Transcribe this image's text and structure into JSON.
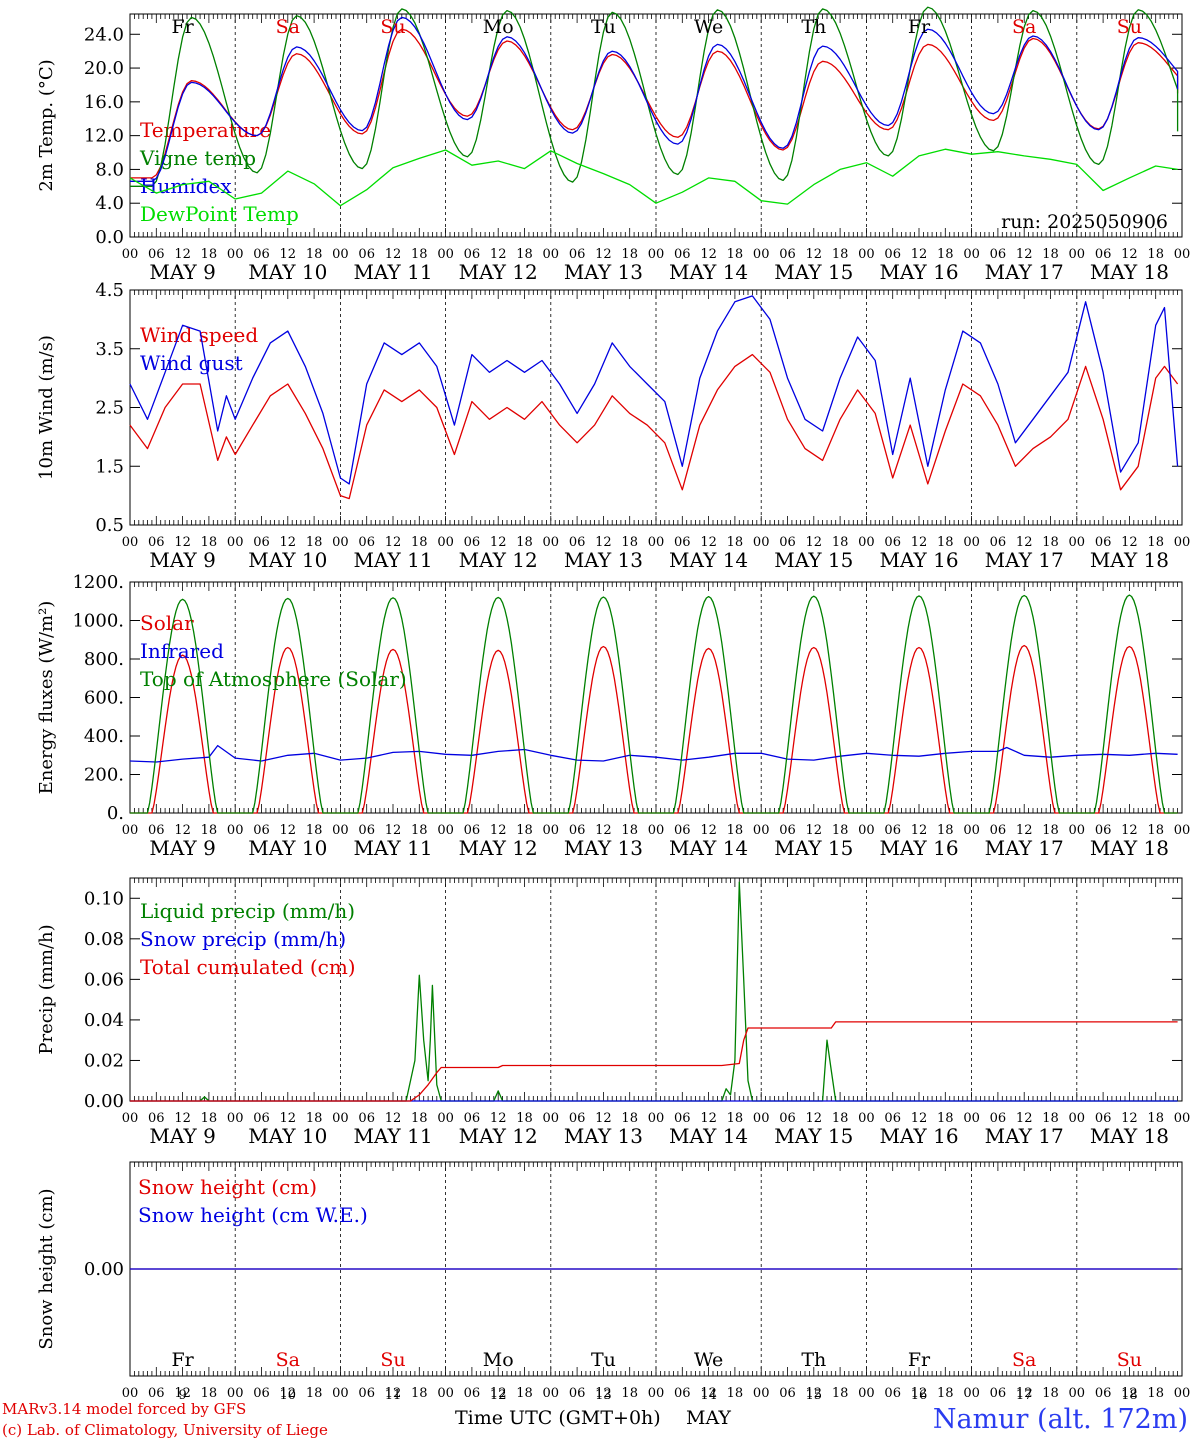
{
  "days": [
    "Fr",
    "Sa",
    "Su",
    "Mo",
    "Tu",
    "We",
    "Th",
    "Fr",
    "Sa",
    "Su"
  ],
  "day_colors": [
    "#000000",
    "#e00000",
    "#e00000",
    "#000000",
    "#000000",
    "#000000",
    "#000000",
    "#000000",
    "#e00000",
    "#e00000"
  ],
  "date_labels": [
    "MAY  9",
    "MAY 10",
    "MAY 11",
    "MAY 12",
    "MAY 13",
    "MAY 14",
    "MAY 15",
    "MAY 16",
    "MAY 17",
    "MAY 18"
  ],
  "day_numbers": [
    "9",
    "10",
    "11",
    "12",
    "13",
    "14",
    "15",
    "16",
    "17",
    "18"
  ],
  "hour_ticks": [
    "00",
    "06",
    "12",
    "18"
  ],
  "run_label": "run: 2025050906",
  "footer": {
    "model": "MARv3.14 model forced by GFS",
    "lab": "(c) Lab. of Climatology, University of Liege",
    "axis_title": "Time UTC (GMT+0h)",
    "month": "MAY",
    "station": "Namur (alt. 172m)"
  },
  "colors": {
    "red": "#e00000",
    "blue": "#0000e0",
    "green": "#008000",
    "lightgreen": "#00dd00",
    "station": "#2a3cf0"
  },
  "chart_data": [
    {
      "type": "line",
      "id": "temperature",
      "ylabel": "2m Temp. (°C)",
      "ylim": [
        0,
        26.4
      ],
      "yticks": [
        "0.0",
        "4.0",
        "8.0",
        "12.0",
        "16.0",
        "20.0",
        "24.0"
      ],
      "ytick_values": [
        0,
        4,
        8,
        12,
        16,
        20,
        24
      ],
      "x_unit": "hours since MAY 9 00 UTC",
      "series": [
        {
          "name": "Temperature",
          "color": "red",
          "kind": "diurnal",
          "max": [
            18.5,
            21.7,
            24.6,
            23.2,
            21.6,
            22.0,
            20.8,
            22.8,
            23.5,
            23.0
          ],
          "min": [
            7.0,
            12.0,
            12.2,
            14.3,
            12.7,
            11.8,
            10.3,
            12.7,
            13.8,
            12.8
          ],
          "end": 17.0
        },
        {
          "name": "Vigne temp",
          "color": "green",
          "kind": "diurnal",
          "max": [
            26.0,
            26.2,
            27.0,
            26.8,
            26.6,
            26.9,
            27.0,
            27.2,
            26.8,
            26.9
          ],
          "min": [
            6.0,
            7.6,
            8.1,
            9.5,
            6.5,
            7.4,
            6.7,
            9.6,
            10.2,
            8.6
          ],
          "end": 12.5
        },
        {
          "name": "Humidex",
          "color": "blue",
          "kind": "diurnal",
          "max": [
            18.3,
            22.5,
            26.0,
            23.7,
            22.0,
            22.8,
            22.6,
            24.6,
            23.8,
            23.6
          ],
          "min": [
            6.6,
            12.0,
            12.6,
            13.9,
            12.3,
            11.0,
            10.5,
            13.2,
            14.6,
            12.7
          ],
          "end": 17.5
        },
        {
          "name": "DewPoint Temp",
          "color": "lightgreen",
          "kind": "points",
          "x": [
            0,
            6,
            12,
            18,
            24,
            30,
            36,
            42,
            48,
            54,
            60,
            66,
            72,
            78,
            84,
            90,
            96,
            102,
            108,
            114,
            120,
            126,
            132,
            138,
            144,
            150,
            156,
            162,
            168,
            174,
            180,
            186,
            192,
            198,
            204,
            210,
            216,
            222,
            228,
            234,
            239
          ],
          "y": [
            7.0,
            5.2,
            6.2,
            6.6,
            4.5,
            5.2,
            7.8,
            6.3,
            3.7,
            5.6,
            8.2,
            9.3,
            10.3,
            8.5,
            9.0,
            8.1,
            10.2,
            8.7,
            7.5,
            6.2,
            4.0,
            5.3,
            7.0,
            6.6,
            4.3,
            3.9,
            6.2,
            8.0,
            8.8,
            7.2,
            9.6,
            10.4,
            9.8,
            10.1,
            9.6,
            9.2,
            8.6,
            5.5,
            7.0,
            8.4,
            8.0
          ]
        }
      ]
    },
    {
      "type": "line",
      "id": "wind",
      "ylabel": "10m Wind (m/s)",
      "ylim": [
        0.5,
        4.5
      ],
      "yticks": [
        "0.5",
        "1.5",
        "2.5",
        "3.5",
        "4.5"
      ],
      "ytick_values": [
        0.5,
        1.5,
        2.5,
        3.5,
        4.5
      ],
      "series": [
        {
          "name": "Wind speed",
          "color": "red",
          "x": [
            0,
            4,
            8,
            12,
            16,
            20,
            22,
            24,
            28,
            32,
            36,
            40,
            44,
            48,
            50,
            54,
            58,
            62,
            66,
            70,
            74,
            78,
            82,
            86,
            90,
            94,
            98,
            102,
            106,
            110,
            114,
            118,
            122,
            126,
            130,
            134,
            138,
            142,
            146,
            150,
            154,
            158,
            162,
            166,
            170,
            174,
            178,
            182,
            186,
            190,
            194,
            198,
            202,
            206,
            210,
            214,
            218,
            222,
            226,
            230,
            234,
            236,
            239
          ],
          "y": [
            2.2,
            1.8,
            2.5,
            2.9,
            2.9,
            1.6,
            2.0,
            1.7,
            2.2,
            2.7,
            2.9,
            2.4,
            1.8,
            1.0,
            0.95,
            2.2,
            2.8,
            2.6,
            2.8,
            2.5,
            1.7,
            2.6,
            2.3,
            2.5,
            2.3,
            2.6,
            2.2,
            1.9,
            2.2,
            2.7,
            2.4,
            2.2,
            1.9,
            1.1,
            2.2,
            2.8,
            3.2,
            3.4,
            3.1,
            2.3,
            1.8,
            1.6,
            2.3,
            2.8,
            2.4,
            1.3,
            2.2,
            1.2,
            2.1,
            2.9,
            2.7,
            2.2,
            1.5,
            1.8,
            2.0,
            2.3,
            3.2,
            2.3,
            1.1,
            1.5,
            3.0,
            3.2,
            2.9
          ]
        },
        {
          "name": "Wind gust",
          "color": "blue",
          "x": [
            0,
            4,
            8,
            12,
            16,
            20,
            22,
            24,
            28,
            32,
            36,
            40,
            44,
            48,
            50,
            54,
            58,
            62,
            66,
            70,
            74,
            78,
            82,
            86,
            90,
            94,
            98,
            102,
            106,
            110,
            114,
            118,
            122,
            126,
            130,
            134,
            138,
            142,
            146,
            150,
            154,
            158,
            162,
            166,
            170,
            174,
            178,
            182,
            186,
            190,
            194,
            198,
            202,
            206,
            210,
            214,
            218,
            222,
            226,
            230,
            234,
            236,
            239
          ],
          "y": [
            2.9,
            2.3,
            3.1,
            3.9,
            3.8,
            2.1,
            2.7,
            2.3,
            3.0,
            3.6,
            3.8,
            3.2,
            2.4,
            1.3,
            1.2,
            2.9,
            3.6,
            3.4,
            3.6,
            3.2,
            2.2,
            3.4,
            3.1,
            3.3,
            3.1,
            3.3,
            2.9,
            2.4,
            2.9,
            3.6,
            3.2,
            2.9,
            2.6,
            1.5,
            3.0,
            3.8,
            4.3,
            4.4,
            4.0,
            3.0,
            2.3,
            2.1,
            3.0,
            3.7,
            3.3,
            1.7,
            3.0,
            1.5,
            2.8,
            3.8,
            3.6,
            2.9,
            1.9,
            2.3,
            2.7,
            3.1,
            4.3,
            3.1,
            1.4,
            1.9,
            3.9,
            4.2,
            1.5
          ]
        }
      ]
    },
    {
      "type": "line",
      "id": "energy",
      "ylabel": "Energy fluxes (W/m²)",
      "ylim": [
        0,
        1200
      ],
      "yticks": [
        "0.",
        "200.",
        "400.",
        "600.",
        "800.",
        "1000.",
        "1200."
      ],
      "ytick_values": [
        0,
        200,
        400,
        600,
        800,
        1000,
        1200
      ],
      "series": [
        {
          "name": "Solar",
          "color": "red",
          "kind": "bell",
          "peak": [
            820,
            860,
            850,
            845,
            865,
            855,
            860,
            860,
            870,
            865
          ]
        },
        {
          "name": "Infrared",
          "color": "blue",
          "kind": "points",
          "x": [
            0,
            6,
            12,
            18,
            20,
            24,
            30,
            36,
            42,
            48,
            54,
            60,
            66,
            72,
            78,
            84,
            90,
            96,
            102,
            108,
            114,
            120,
            126,
            132,
            138,
            144,
            150,
            156,
            162,
            168,
            174,
            180,
            186,
            192,
            198,
            200,
            204,
            210,
            216,
            222,
            228,
            234,
            239
          ],
          "y": [
            270,
            265,
            280,
            290,
            350,
            285,
            270,
            300,
            310,
            275,
            285,
            315,
            320,
            305,
            300,
            320,
            330,
            300,
            275,
            270,
            300,
            290,
            275,
            290,
            310,
            310,
            280,
            275,
            295,
            310,
            300,
            295,
            310,
            320,
            320,
            340,
            300,
            290,
            300,
            305,
            300,
            310,
            305
          ]
        },
        {
          "name": "Top of Atmosphere (Solar)",
          "color": "green",
          "kind": "bell",
          "peak": [
            1110,
            1115,
            1118,
            1120,
            1122,
            1124,
            1126,
            1128,
            1130,
            1132
          ]
        }
      ]
    },
    {
      "type": "line",
      "id": "precip",
      "ylabel": "Precip (mm/h)",
      "ylim": [
        0,
        0.11
      ],
      "yticks": [
        "0.00",
        "0.02",
        "0.04",
        "0.06",
        "0.08",
        "0.10"
      ],
      "ytick_values": [
        0,
        0.02,
        0.04,
        0.06,
        0.08,
        0.1
      ],
      "series": [
        {
          "name": "Liquid precip (mm/h)",
          "color": "green",
          "x": [
            0,
            16,
            17,
            18,
            63,
            65,
            66,
            67,
            68,
            68.5,
            69,
            70,
            71,
            72,
            83,
            84,
            85,
            135,
            136,
            137,
            138,
            139,
            140,
            141,
            142,
            158,
            159,
            160,
            161,
            239
          ],
          "y": [
            0,
            0,
            0.002,
            0,
            0,
            0.02,
            0.062,
            0.03,
            0.01,
            0.03,
            0.057,
            0.008,
            0,
            0,
            0,
            0.005,
            0,
            0,
            0.006,
            0.003,
            0.02,
            0.108,
            0.06,
            0.01,
            0,
            0,
            0.03,
            0.015,
            0,
            0
          ]
        },
        {
          "name": "Snow precip (mm/h)",
          "color": "blue",
          "x": [
            0,
            239
          ],
          "y": [
            0,
            0
          ]
        },
        {
          "name": "Total cumulated (cm)",
          "color": "red",
          "x": [
            0,
            64,
            66,
            68,
            70,
            71,
            84,
            85,
            135,
            139,
            140,
            141,
            160,
            161,
            239
          ],
          "y": [
            0,
            0,
            0.003,
            0.008,
            0.014,
            0.0165,
            0.0165,
            0.0175,
            0.0175,
            0.0185,
            0.03,
            0.036,
            0.036,
            0.039,
            0.039
          ]
        }
      ]
    },
    {
      "type": "line",
      "id": "snow",
      "ylabel": "Snow height (cm)",
      "ylim": [
        -0.06,
        0.06
      ],
      "yticks": [
        "0.00"
      ],
      "ytick_values": [
        0
      ],
      "series": [
        {
          "name": "Snow height (cm)",
          "color": "red",
          "x": [
            0,
            239
          ],
          "y": [
            0,
            0
          ]
        },
        {
          "name": "Snow height (cm W.E.)",
          "color": "blue",
          "x": [
            0,
            239
          ],
          "y": [
            0,
            0
          ]
        }
      ]
    }
  ]
}
